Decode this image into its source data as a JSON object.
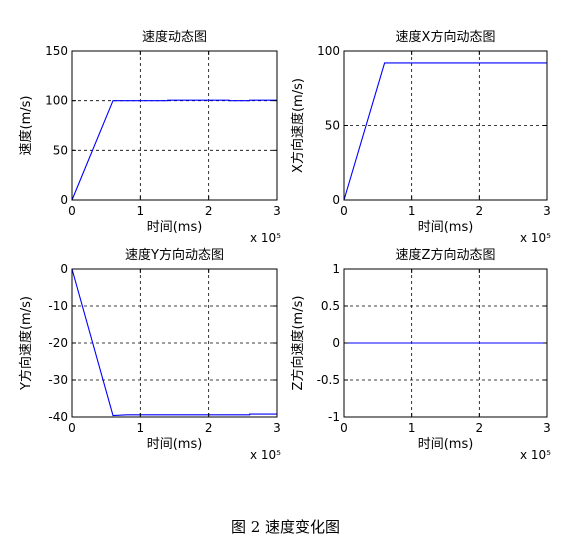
{
  "caption": "图 2  速度变化图",
  "chart_data": [
    {
      "type": "line",
      "title": "速度动态图",
      "xlabel": "时间(ms)",
      "ylabel": "速度(m/s)",
      "x_exponent": "x 10⁵",
      "xlim": [
        0,
        3
      ],
      "ylim": [
        0,
        150
      ],
      "xticks": [
        0,
        1,
        2,
        3
      ],
      "yticks": [
        0,
        50,
        100,
        150
      ],
      "grid": true,
      "line_color": "#0000ff",
      "series": [
        {
          "x": [
            0,
            0.6,
            1.4,
            1.4,
            2.3,
            2.3,
            2.6,
            2.6,
            3.0
          ],
          "y": [
            0,
            100,
            100,
            100.5,
            100.5,
            100,
            100,
            100.5,
            100.5
          ]
        }
      ]
    },
    {
      "type": "line",
      "title": "速度X方向动态图",
      "xlabel": "时间(ms)",
      "ylabel": "X方向速度(m/s)",
      "x_exponent": "x 10⁵",
      "xlim": [
        0,
        3
      ],
      "ylim": [
        0,
        100
      ],
      "xticks": [
        0,
        1,
        2,
        3
      ],
      "yticks": [
        0,
        50,
        100
      ],
      "grid": true,
      "line_color": "#0000ff",
      "series": [
        {
          "x": [
            0,
            0.6,
            3.0
          ],
          "y": [
            0,
            92,
            92
          ]
        }
      ]
    },
    {
      "type": "line",
      "title": "速度Y方向动态图",
      "xlabel": "时间(ms)",
      "ylabel": "Y方向速度(m/s)",
      "x_exponent": "x 10⁵",
      "xlim": [
        0,
        3
      ],
      "ylim": [
        -40,
        0
      ],
      "xticks": [
        0,
        1,
        2,
        3
      ],
      "yticks": [
        -40,
        -30,
        -20,
        -10,
        0
      ],
      "grid": true,
      "line_color": "#0000ff",
      "series": [
        {
          "x": [
            0,
            0.6,
            0.8,
            2.6,
            2.6,
            3.0
          ],
          "y": [
            0,
            -39.6,
            -39.4,
            -39.4,
            -39.2,
            -39.2
          ]
        }
      ]
    },
    {
      "type": "line",
      "title": "速度Z方向动态图",
      "xlabel": "时间(ms)",
      "ylabel": "Z方向速度(m/s)",
      "x_exponent": "x 10⁵",
      "xlim": [
        0,
        3
      ],
      "ylim": [
        -1,
        1
      ],
      "xticks": [
        0,
        1,
        2,
        3
      ],
      "yticks": [
        -1,
        -0.5,
        0,
        0.5,
        1
      ],
      "grid": true,
      "line_color": "#0000ff",
      "series": [
        {
          "x": [
            0,
            3.0
          ],
          "y": [
            0,
            0
          ]
        }
      ]
    }
  ]
}
